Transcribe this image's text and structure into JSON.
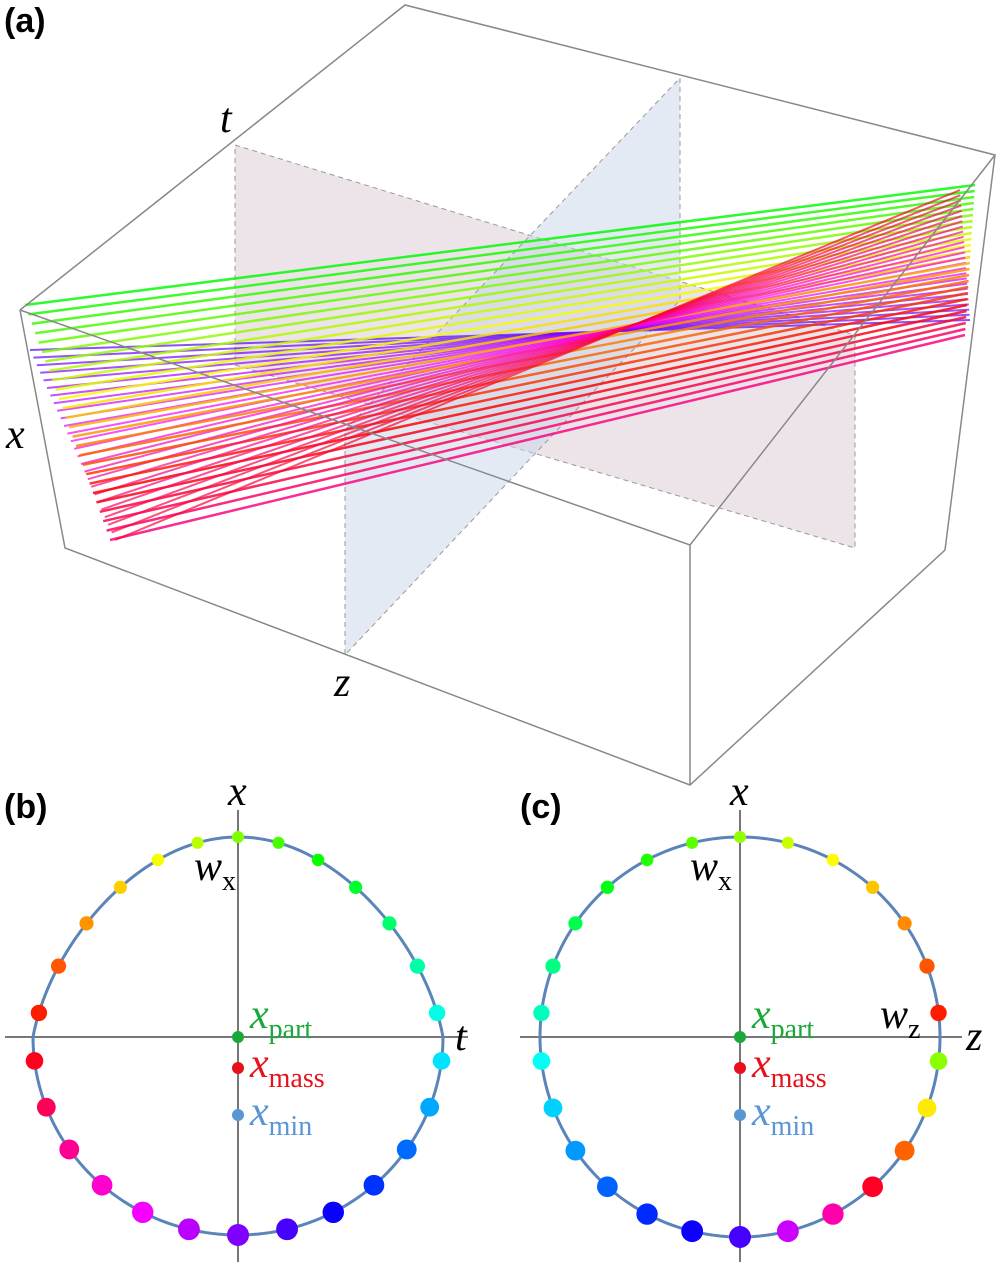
{
  "panel_a": {
    "label": "(a)",
    "axes": {
      "t": "t",
      "x": "x",
      "z": "z"
    }
  },
  "panel_b": {
    "label": "(b)",
    "axis_vertical": "x",
    "axis_horizontal": "t",
    "w_x": {
      "base": "w",
      "sub": "x"
    },
    "x_part": {
      "base": "x",
      "sub": "part"
    },
    "x_mass": {
      "base": "x",
      "sub": "mass"
    },
    "x_min": {
      "base": "x",
      "sub": "min"
    }
  },
  "panel_c": {
    "label": "(c)",
    "axis_vertical": "x",
    "axis_horizontal": "z",
    "w_x": {
      "base": "w",
      "sub": "x"
    },
    "w_z": {
      "base": "w",
      "sub": "z"
    },
    "x_part": {
      "base": "x",
      "sub": "part"
    },
    "x_mass": {
      "base": "x",
      "sub": "mass"
    },
    "x_min": {
      "base": "x",
      "sub": "min"
    }
  }
}
